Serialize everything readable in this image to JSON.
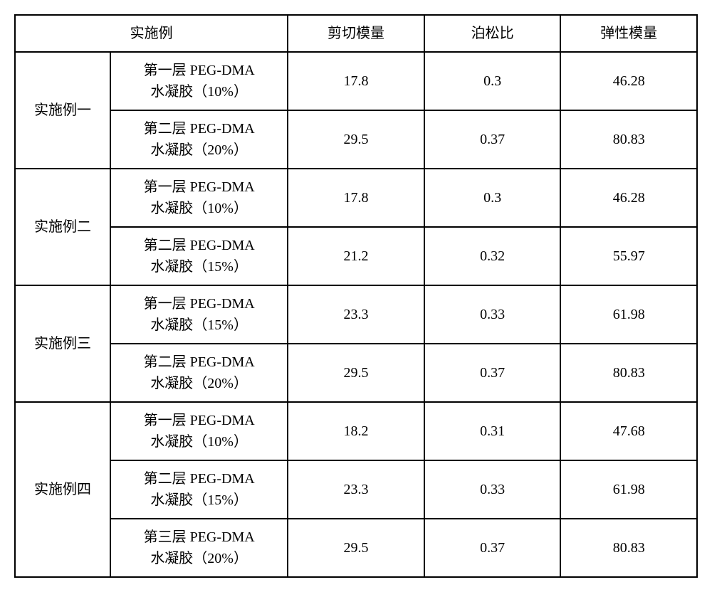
{
  "table": {
    "font_family": "SimSun",
    "header_fontsize": 20,
    "cell_fontsize": 20,
    "border_color": "#000000",
    "border_width": 2,
    "background": "#ffffff",
    "text_color": "#000000",
    "col_widths_pct": [
      14,
      26,
      20,
      20,
      20
    ],
    "headers": {
      "example": "实施例",
      "shear_modulus": "剪切模量",
      "poisson_ratio": "泊松比",
      "elastic_modulus": "弹性模量"
    },
    "groups": [
      {
        "label": "实施例一",
        "rows": [
          {
            "desc_l1": "第一层 PEG-DMA",
            "desc_l2": "水凝胶（10%）",
            "shear": "17.8",
            "poisson": "0.3",
            "elastic": "46.28"
          },
          {
            "desc_l1": "第二层 PEG-DMA",
            "desc_l2": "水凝胶（20%）",
            "shear": "29.5",
            "poisson": "0.37",
            "elastic": "80.83"
          }
        ]
      },
      {
        "label": "实施例二",
        "rows": [
          {
            "desc_l1": "第一层 PEG-DMA",
            "desc_l2": "水凝胶（10%）",
            "shear": "17.8",
            "poisson": "0.3",
            "elastic": "46.28"
          },
          {
            "desc_l1": "第二层 PEG-DMA",
            "desc_l2": "水凝胶（15%）",
            "shear": "21.2",
            "poisson": "0.32",
            "elastic": "55.97"
          }
        ]
      },
      {
        "label": "实施例三",
        "rows": [
          {
            "desc_l1": "第一层 PEG-DMA",
            "desc_l2": "水凝胶（15%）",
            "shear": "23.3",
            "poisson": "0.33",
            "elastic": "61.98"
          },
          {
            "desc_l1": "第二层 PEG-DMA",
            "desc_l2": "水凝胶（20%）",
            "shear": "29.5",
            "poisson": "0.37",
            "elastic": "80.83"
          }
        ]
      },
      {
        "label": "实施例四",
        "rows": [
          {
            "desc_l1": "第一层 PEG-DMA",
            "desc_l2": "水凝胶（10%）",
            "shear": "18.2",
            "poisson": "0.31",
            "elastic": "47.68"
          },
          {
            "desc_l1": "第二层 PEG-DMA",
            "desc_l2": "水凝胶（15%）",
            "shear": "23.3",
            "poisson": "0.33",
            "elastic": "61.98"
          },
          {
            "desc_l1": "第三层 PEG-DMA",
            "desc_l2": "水凝胶（20%）",
            "shear": "29.5",
            "poisson": "0.37",
            "elastic": "80.83"
          }
        ]
      }
    ]
  }
}
